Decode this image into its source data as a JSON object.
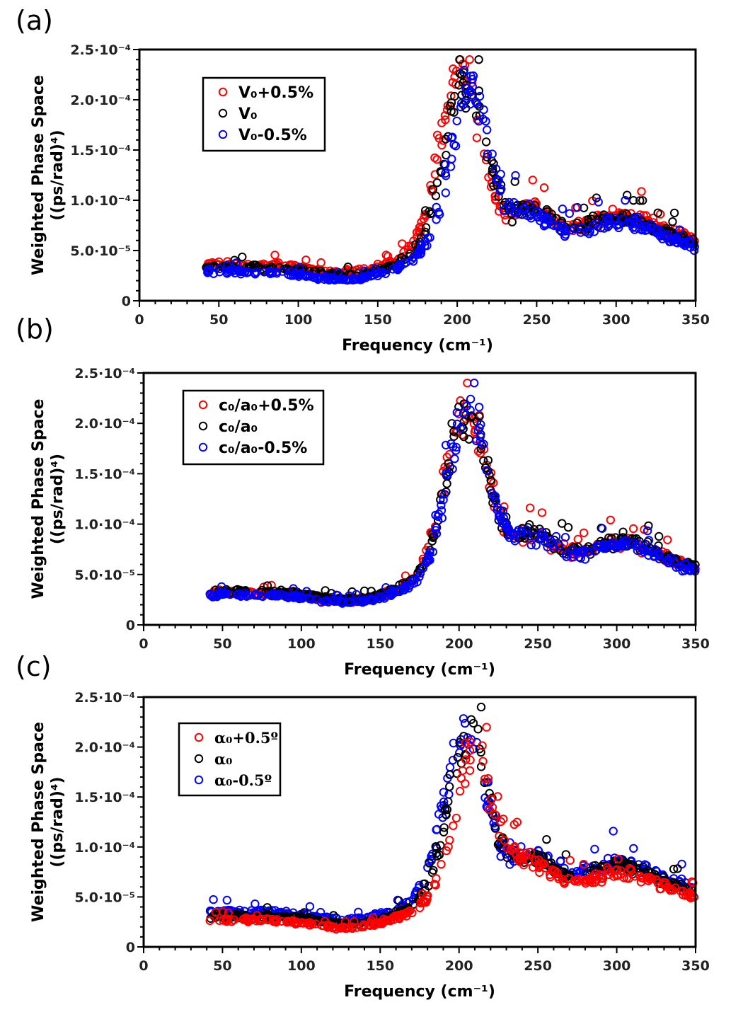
{
  "chart_data": [
    {
      "type": "scatter",
      "panel_label": "(a)",
      "title": "",
      "xlabel": "Frequency (cm⁻¹)",
      "ylabel_line1": "Weighted Phase Space",
      "ylabel_line2": "((ps/rad)⁴)",
      "xlim": [
        0,
        350
      ],
      "ylim": [
        0,
        0.00025
      ],
      "xticks": [
        "0",
        "50",
        "100",
        "150",
        "200",
        "250",
        "300",
        "350"
      ],
      "yticks": [
        "0",
        "5.0·10⁻⁵",
        "1.0·10⁻⁴",
        "1.5·10⁻⁴",
        "2.0·10⁻⁴",
        "2.5·10⁻⁴"
      ],
      "legend_position": "top-left",
      "legend_style": "sans",
      "series": [
        {
          "name": "V₀+0.5%",
          "color": "#ff0000",
          "peak": 0.000205,
          "peak_x": 202,
          "base": 3.6e-05,
          "shoulder": 8.2e-05
        },
        {
          "name": "V₀",
          "color": "#000000",
          "peak": 0.0002,
          "peak_x": 205,
          "base": 3.3e-05,
          "shoulder": 7.9e-05
        },
        {
          "name": "V₀-0.5%",
          "color": "#0000ff",
          "peak": 0.000185,
          "peak_x": 208,
          "base": 2.9e-05,
          "shoulder": 7.5e-05
        }
      ]
    },
    {
      "type": "scatter",
      "panel_label": "(b)",
      "title": "",
      "xlabel": "Frequency (cm⁻¹)",
      "ylabel_line1": "Weighted Phase Space",
      "ylabel_line2": "((ps/rad)⁴)",
      "xlim": [
        0,
        350
      ],
      "ylim": [
        0,
        0.00025
      ],
      "xticks": [
        "0",
        "50",
        "100",
        "150",
        "200",
        "250",
        "300",
        "350"
      ],
      "yticks": [
        "0",
        "5.0·10⁻⁵",
        "1.0·10⁻⁴",
        "1.5·10⁻⁴",
        "2.0·10⁻⁴",
        "2.5·10⁻⁴"
      ],
      "legend_position": "top-left",
      "legend_style": "sans",
      "series": [
        {
          "name": "c₀/a₀+0.5%",
          "color": "#ff0000",
          "peak": 0.000195,
          "peak_x": 204,
          "base": 3.2e-05,
          "shoulder": 7.8e-05
        },
        {
          "name": "c₀/a₀",
          "color": "#000000",
          "peak": 0.000195,
          "peak_x": 205,
          "base": 3.3e-05,
          "shoulder": 7.9e-05
        },
        {
          "name": "c₀/a₀-0.5%",
          "color": "#0000ff",
          "peak": 0.00019,
          "peak_x": 206,
          "base": 3e-05,
          "shoulder": 7.6e-05
        }
      ]
    },
    {
      "type": "scatter",
      "panel_label": "(c)",
      "title": "",
      "xlabel": "Frequency (cm⁻¹)",
      "ylabel_line1": "Weighted Phase Space",
      "ylabel_line2": "((ps/rad)⁴)",
      "xlim": [
        0,
        350
      ],
      "ylim": [
        0,
        0.00025
      ],
      "xticks": [
        "0",
        "50",
        "100",
        "150",
        "200",
        "250",
        "300",
        "350"
      ],
      "yticks": [
        "0",
        "5.0·10⁻⁵",
        "1.0·10⁻⁴",
        "1.5·10⁻⁴",
        "2.0·10⁻⁴",
        "2.5·10⁻⁴"
      ],
      "legend_position": "top-left",
      "legend_style": "serif",
      "series": [
        {
          "name": "α₀-0.5º",
          "color": "#0000ff",
          "peak": 0.000198,
          "peak_x": 204,
          "base": 3.5e-05,
          "shoulder": 8e-05
        },
        {
          "name": "α₀",
          "color": "#000000",
          "peak": 0.00019,
          "peak_x": 206,
          "base": 3.1e-05,
          "shoulder": 7.7e-05
        },
        {
          "name": "α₀+0.5º",
          "color": "#ff0000",
          "peak": 0.00017,
          "peak_x": 210,
          "base": 2.7e-05,
          "shoulder": 6.8e-05
        }
      ],
      "legend_order": [
        2,
        1,
        0
      ]
    }
  ]
}
